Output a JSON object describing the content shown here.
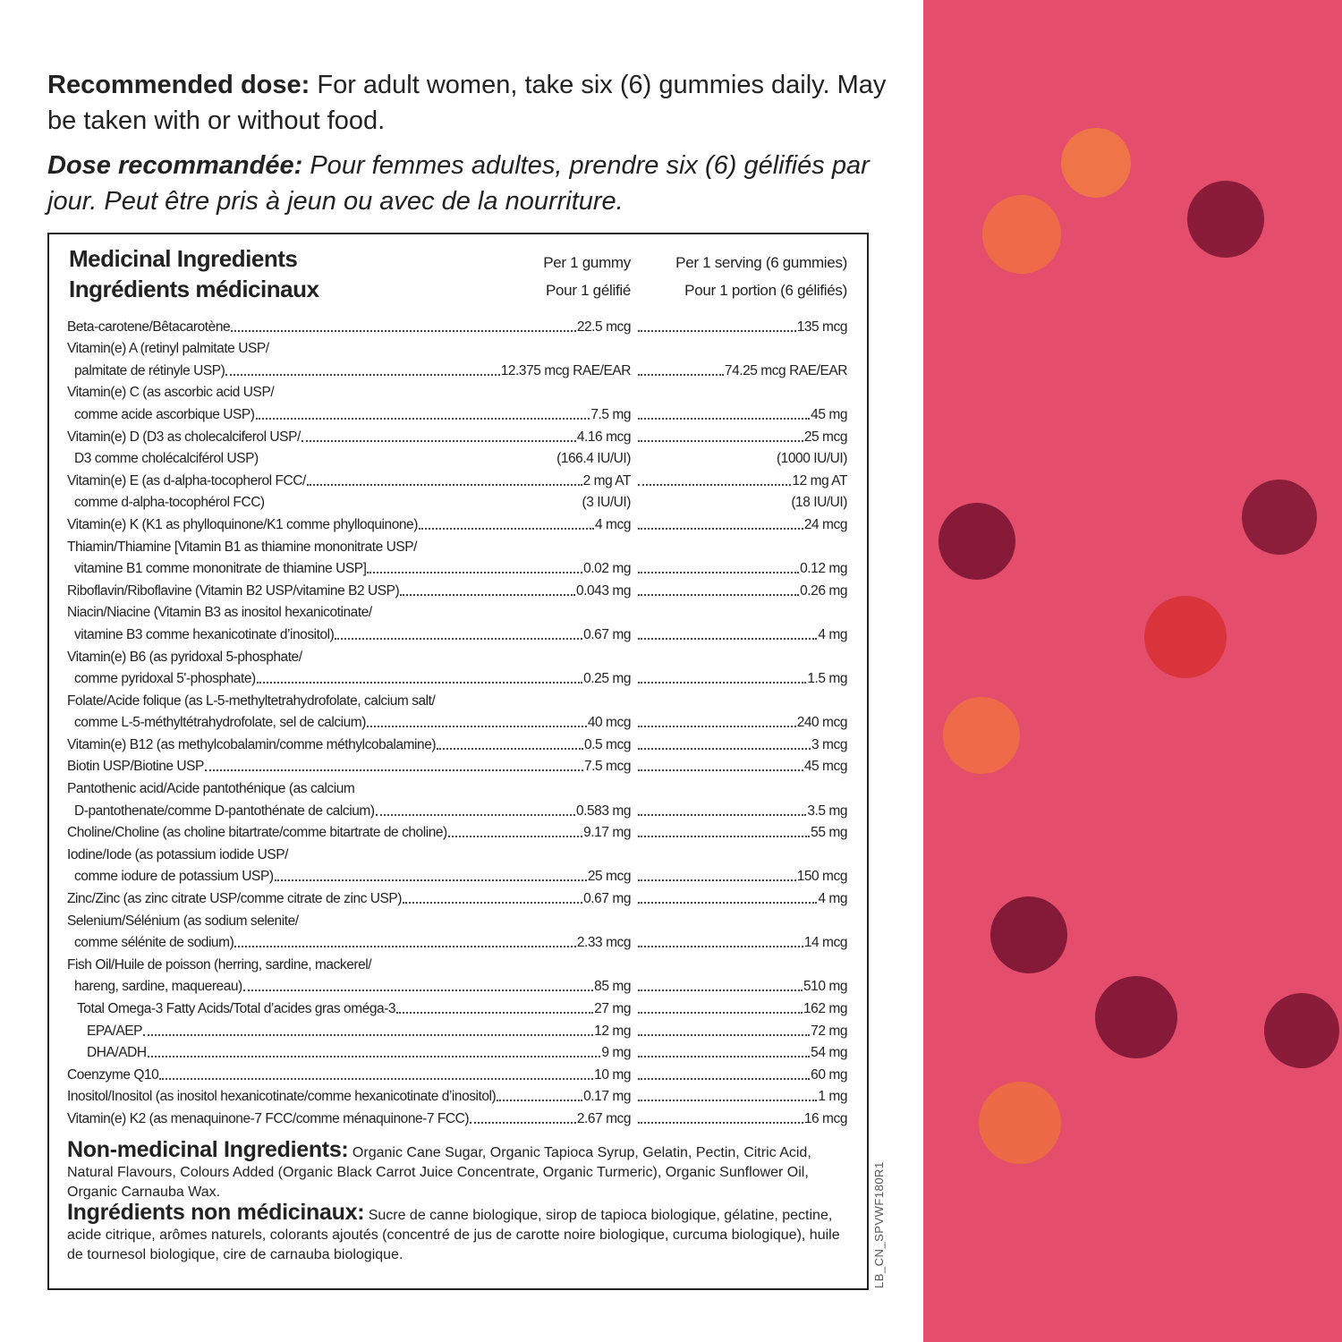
{
  "dose_en": {
    "label": "Recommended dose:",
    "text": "For adult women, take six (6) gummies daily. May be taken with or without food."
  },
  "dose_fr": {
    "label": "Dose recommandée:",
    "text": "Pour femmes adultes, prendre six (6) gélifiés par jour. Peut être pris à jeun ou avec de la nourriture."
  },
  "table": {
    "title": [
      "Medicinal Ingredients",
      "Ingrédients médicinaux"
    ],
    "columns": [
      [
        "Per 1 gummy",
        "Pour 1 gélifié"
      ],
      [
        "Per 1 serving (6 gummies)",
        "Pour 1 portion (6 gélifiés)"
      ]
    ],
    "rows": [
      {
        "name": [
          "Beta-carotene/Bêtacarotène"
        ],
        "gummy": [
          "22.5 mcg"
        ],
        "serving": [
          "135 mcg"
        ]
      },
      {
        "name": [
          "Vitamin(e) A (retinyl palmitate USP/",
          "palmitate de rétinyle USP)"
        ],
        "gummy": [
          "12.375 mcg RAE/EAR"
        ],
        "serving": [
          "74.25 mcg RAE/EAR"
        ]
      },
      {
        "name": [
          "Vitamin(e) C (as ascorbic acid USP/",
          "comme acide ascorbique USP)"
        ],
        "gummy": [
          "7.5 mg"
        ],
        "serving": [
          "45 mg"
        ]
      },
      {
        "name": [
          "Vitamin(e) D (D3 as cholecalciferol USP/",
          "D3 comme cholécalciférol USP)"
        ],
        "gummy": [
          "4.16 mcg",
          "(166.4 IU/UI)"
        ],
        "serving": [
          "25 mcg",
          "(1000 IU/UI)"
        ]
      },
      {
        "name": [
          "Vitamin(e) E (as d-alpha-tocopherol FCC/",
          "comme d-alpha-tocophérol FCC)"
        ],
        "gummy": [
          "2 mg AT",
          "(3 IU/UI)"
        ],
        "serving": [
          "12 mg AT",
          "(18 IU/UI)"
        ]
      },
      {
        "name": [
          "Vitamin(e) K (K1 as phylloquinone/K1 comme phylloquinone)"
        ],
        "gummy": [
          "4 mcg"
        ],
        "serving": [
          "24 mcg"
        ]
      },
      {
        "name": [
          "Thiamin/Thiamine [Vitamin B1 as thiamine mononitrate USP/",
          "vitamine B1 comme mononitrate de thiamine USP]"
        ],
        "gummy": [
          "0.02 mg"
        ],
        "serving": [
          "0.12 mg"
        ]
      },
      {
        "name": [
          "Riboflavin/Riboflavine (Vitamin B2 USP/vitamine B2 USP)"
        ],
        "gummy": [
          "0.043 mg"
        ],
        "serving": [
          "0.26 mg"
        ]
      },
      {
        "name": [
          "Niacin/Niacine (Vitamin B3 as inositol hexanicotinate/",
          "vitamine B3 comme hexanicotinate d’inositol)"
        ],
        "gummy": [
          "0.67 mg"
        ],
        "serving": [
          "4 mg"
        ]
      },
      {
        "name": [
          "Vitamin(e) B6 (as pyridoxal 5-phosphate/",
          "comme pyridoxal 5'-phosphate)"
        ],
        "gummy": [
          "0.25 mg"
        ],
        "serving": [
          "1.5 mg"
        ]
      },
      {
        "name": [
          "Folate/Acide folique (as L-5-methyltetrahydrofolate, calcium salt/",
          "comme L-5-méthyltétrahydrofolate, sel de calcium)"
        ],
        "gummy": [
          "40 mcg"
        ],
        "serving": [
          "240 mcg"
        ]
      },
      {
        "name": [
          "Vitamin(e) B12 (as methylcobalamin/comme méthylcobalamine)"
        ],
        "gummy": [
          "0.5 mcg"
        ],
        "serving": [
          "3 mcg"
        ]
      },
      {
        "name": [
          "Biotin USP/Biotine USP"
        ],
        "gummy": [
          "7.5 mcg"
        ],
        "serving": [
          "45 mcg"
        ]
      },
      {
        "name": [
          "Pantothenic acid/Acide pantothénique (as calcium",
          "D-pantothenate/comme D-pantothénate de calcium)"
        ],
        "gummy": [
          "0.583 mg"
        ],
        "serving": [
          "3.5 mg"
        ]
      },
      {
        "name": [
          "Choline/Choline (as choline bitartrate/comme bitartrate de choline)"
        ],
        "gummy": [
          "9.17 mg"
        ],
        "serving": [
          "55 mg"
        ]
      },
      {
        "name": [
          "Iodine/Iode (as potassium iodide USP/",
          "comme iodure de potassium USP)"
        ],
        "gummy": [
          "25 mcg"
        ],
        "serving": [
          "150 mcg"
        ]
      },
      {
        "name": [
          "Zinc/Zinc (as zinc citrate USP/comme citrate de zinc USP)"
        ],
        "gummy": [
          "0.67 mg"
        ],
        "serving": [
          "4 mg"
        ]
      },
      {
        "name": [
          "Selenium/Sélénium (as sodium selenite/",
          "comme sélénite de sodium)"
        ],
        "gummy": [
          "2.33 mcg"
        ],
        "serving": [
          "14 mcg"
        ]
      },
      {
        "name": [
          "Fish Oil/Huile de poisson (herring, sardine, mackerel/",
          "hareng, sardine, maquereau)"
        ],
        "gummy": [
          "85 mg"
        ],
        "serving": [
          "510 mg"
        ],
        "components": [
          {
            "name": [
              "Total Omega-3 Fatty Acids/Total d’acides gras oméga-3"
            ],
            "gummy": [
              "27 mg"
            ],
            "serving": [
              "162 mg"
            ],
            "components": [
              {
                "name": [
                  "EPA/AEP"
                ],
                "gummy": [
                  "12 mg"
                ],
                "serving": [
                  "72 mg"
                ]
              },
              {
                "name": [
                  "DHA/ADH"
                ],
                "gummy": [
                  "9 mg"
                ],
                "serving": [
                  "54 mg"
                ]
              }
            ]
          }
        ]
      },
      {
        "name": [
          "Coenzyme Q10"
        ],
        "gummy": [
          "10 mg"
        ],
        "serving": [
          "60 mg"
        ]
      },
      {
        "name": [
          "Inositol/Inositol (as inositol hexanicotinate/comme hexanicotinate d’inositol)"
        ],
        "gummy": [
          "0.17 mg"
        ],
        "serving": [
          "1 mg"
        ]
      },
      {
        "name": [
          "Vitamin(e) K2 (as menaquinone-7 FCC/comme ménaquinone-7 FCC)"
        ],
        "gummy": [
          "2.67 mcg"
        ],
        "serving": [
          "16 mcg"
        ]
      }
    ]
  },
  "non_medicinal_en": {
    "label": "Non-medicinal Ingredients:",
    "text": "Organic Cane Sugar, Organic Tapioca Syrup, Gelatin, Pectin, Citric Acid, Natural Flavours, Colours Added (Organic Black Carrot Juice Concentrate, Organic Turmeric), Organic Sunflower Oil, Organic Carnauba Wax."
  },
  "non_medicinal_fr": {
    "label": "Ingrédients non médicinaux:",
    "text": "Sucre de canne biologique, sirop de tapioca biologique, gélatine, pectine, acide citrique, arômes naturels, colorants ajoutés (concentré de jus de carotte noire biologique, curcuma biologique), huile de tournesol biologique, cire de carnauba biologique."
  },
  "code": "LB_CN_SPVWF180R1"
}
